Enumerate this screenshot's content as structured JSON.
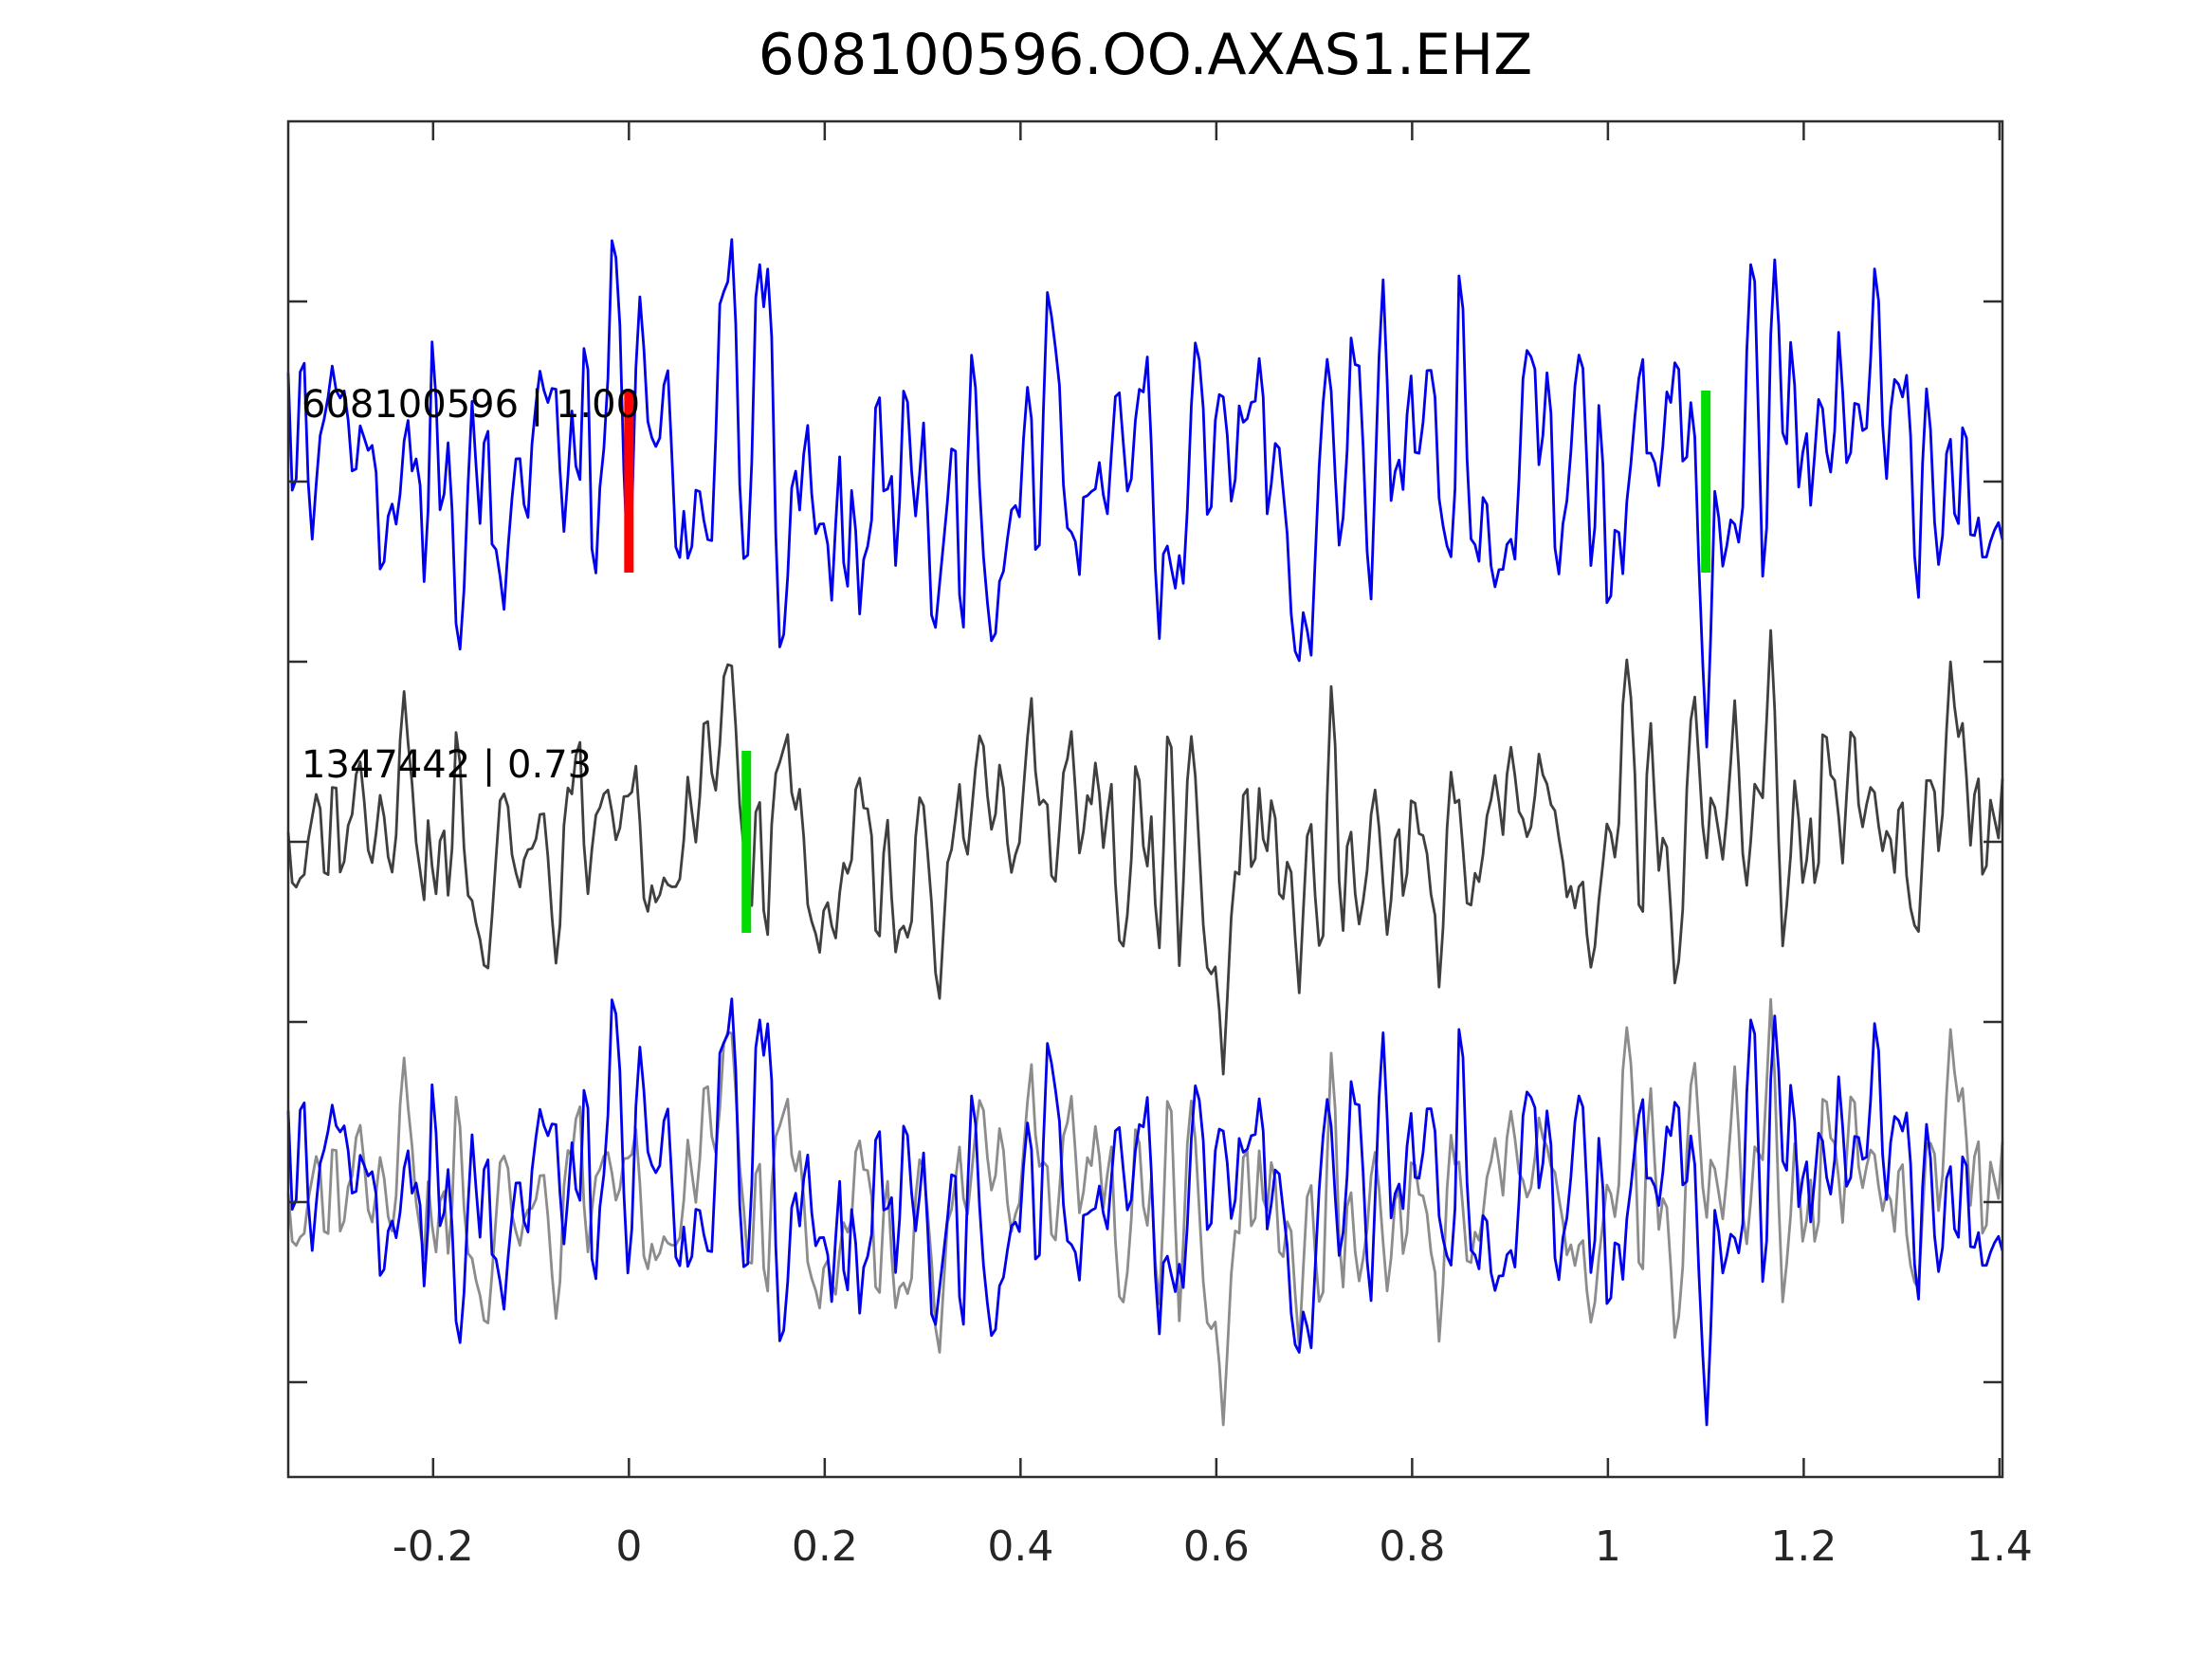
{
  "figure": {
    "title": "608100596.OO.AXAS1.EHZ"
  },
  "chart_data": {
    "type": "line",
    "title": "608100596.OO.AXAS1.EHZ",
    "xlabel": "",
    "ylabel": "",
    "xlim": [
      -0.348,
      1.403
    ],
    "x_ticks": [
      -0.2,
      0,
      0.2,
      0.4,
      0.6,
      0.8,
      1,
      1.2,
      1.4
    ],
    "x_tick_labels": [
      "-0.2",
      "0",
      "0.2",
      "0.4",
      "0.6",
      "0.8",
      "1",
      "1.2",
      "1.4"
    ],
    "y_tick_rows": 7,
    "grid": false,
    "legend_position": "none",
    "colors": {
      "axes": "#2e2e2e",
      "text": "#000000",
      "detection_blue": "#0000ee",
      "template_dark_gray": "#3f3f3f",
      "overlay_gray": "#8c8c8c",
      "pick_red": "#ff0000",
      "pick_green": "#00dc00"
    },
    "traces": [
      {
        "id": "detection",
        "label": "608100596 | 1.00",
        "detection_id": "608100596",
        "correlation": "1.00",
        "color": "#0000ee",
        "row": 0,
        "markers": [
          {
            "x": 0.0,
            "color": "#ff0000",
            "kind": "pick-marker-red"
          },
          {
            "x": 1.1,
            "color": "#00dc00",
            "kind": "pick-marker-green"
          }
        ],
        "synth": {
          "seed": 608596,
          "points": 430,
          "amplitude": 280
        }
      },
      {
        "id": "template",
        "label": "1347442 | 0.73",
        "template_id": "1347442",
        "correlation": "0.73",
        "color": "#3f3f3f",
        "row": 1,
        "markers": [
          {
            "x": 0.12,
            "color": "#00dc00",
            "kind": "pick-marker-green"
          }
        ],
        "synth": {
          "seed": 1347442,
          "points": 430,
          "amplitude": 245
        }
      },
      {
        "id": "overlay",
        "label": "",
        "row": 2,
        "series": [
          {
            "source": "template",
            "color": "#8c8c8c",
            "amplitude": 235
          },
          {
            "source": "detection",
            "color": "#0000ee",
            "amplitude": 235
          }
        ]
      }
    ]
  }
}
